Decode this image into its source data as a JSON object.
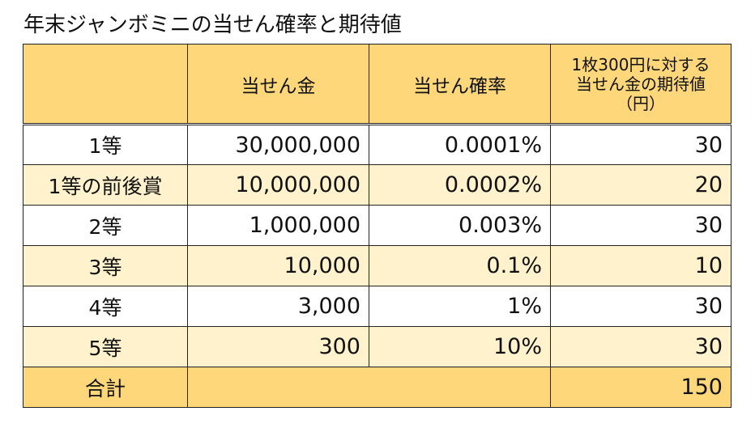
{
  "title": "年末ジャンボミニの当せん確率と期待値",
  "table": {
    "headers": {
      "col1": "",
      "col2": "当せん金",
      "col3": "当せん確率",
      "col4_lines": [
        "1枚300円に対する",
        "当せん金の期待値",
        "（円）"
      ]
    },
    "rows": [
      {
        "label": "1等",
        "prize": "30,000,000",
        "probability": "0.0001%",
        "expected": "30"
      },
      {
        "label": "1等の前後賞",
        "prize": "10,000,000",
        "probability": "0.0002%",
        "expected": "20"
      },
      {
        "label": "2等",
        "prize": "1,000,000",
        "probability": "0.003%",
        "expected": "30"
      },
      {
        "label": "3等",
        "prize": "10,000",
        "probability": "0.1%",
        "expected": "10"
      },
      {
        "label": "4等",
        "prize": "3,000",
        "probability": "1%",
        "expected": "30"
      },
      {
        "label": "5等",
        "prize": "300",
        "probability": "10%",
        "expected": "30"
      }
    ],
    "total": {
      "label": "合計",
      "expected": "150"
    }
  },
  "colors": {
    "header_fill": "#fdd77a",
    "band_fill": "#fff2cc",
    "border": "#222222"
  }
}
